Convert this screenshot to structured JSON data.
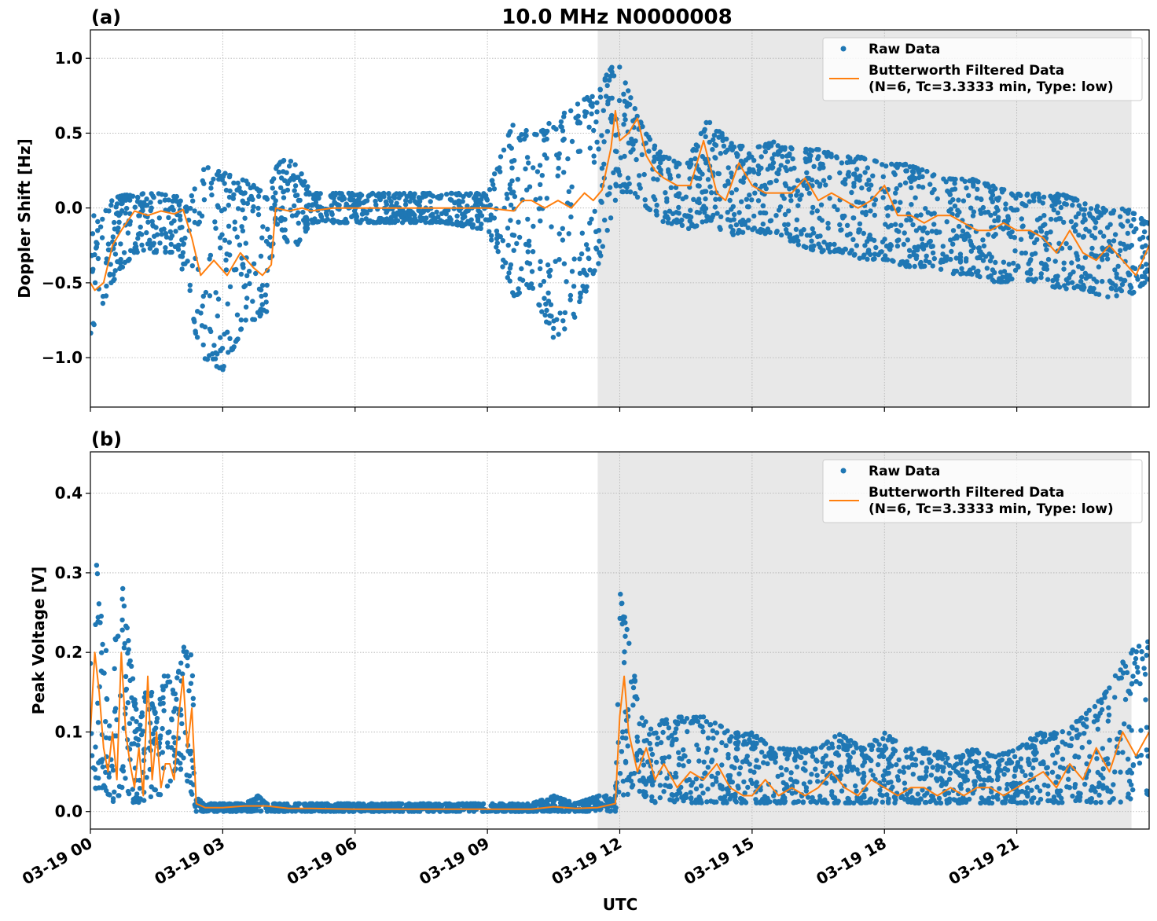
{
  "figure": {
    "title": "10.0 MHz N0000008",
    "xlabel": "UTC"
  },
  "colors": {
    "raw": "#1f77b4",
    "filtered": "#ff7f0e",
    "shade": "#e8e8e8",
    "grid": "#b0b0b0"
  },
  "chart_data": [
    {
      "type": "scatter",
      "panel_label": "(a)",
      "ylabel": "Doppler Shift [Hz]",
      "xlim": [
        0,
        24
      ],
      "ylim": [
        -1.33,
        1.19
      ],
      "yticks": [
        -1.0,
        -0.5,
        0.0,
        0.5,
        1.0
      ],
      "ytick_labels": [
        "−1.0",
        "−0.5",
        "0.0",
        "0.5",
        "1.0"
      ],
      "xticks": [
        0,
        3,
        6,
        9,
        12,
        15,
        18,
        21
      ],
      "xtick_labels": [
        "03-19 00",
        "03-19 03",
        "03-19 06",
        "03-19 09",
        "03-19 12",
        "03-19 15",
        "03-19 18",
        "03-19 21"
      ],
      "shaded_region": [
        11.5,
        23.6
      ],
      "grid": true,
      "legend": {
        "placement": "upper right",
        "entries": [
          "Raw Data",
          "Butterworth Filtered Data",
          "(N=6, Tc=3.3333 min, Type: low)"
        ]
      },
      "series": [
        {
          "name": "Raw Data",
          "style": "markers",
          "envelope": {
            "x": [
              0,
              0.2,
              0.5,
              1.0,
              1.5,
              2.0,
              2.2,
              2.5,
              3.0,
              3.5,
              4.0,
              4.2,
              4.6,
              5.0,
              6.0,
              7.0,
              8.0,
              9.0,
              9.6,
              10.0,
              10.5,
              11.0,
              11.5,
              11.8,
              12.0,
              12.3,
              12.6,
              13.0,
              13.5,
              14.0,
              14.5,
              15.0,
              15.5,
              16.0,
              16.5,
              17.0,
              17.5,
              18.0,
              18.5,
              19.0,
              19.5,
              20.0,
              20.5,
              21.0,
              21.5,
              22.0,
              22.5,
              23.0,
              23.5,
              24.0
            ],
            "upper": [
              0.0,
              -0.1,
              0.08,
              0.1,
              0.1,
              0.1,
              0.0,
              0.3,
              0.25,
              0.2,
              0.1,
              0.3,
              0.35,
              0.1,
              0.1,
              0.1,
              0.1,
              0.1,
              0.6,
              0.5,
              0.6,
              0.7,
              0.8,
              0.95,
              0.95,
              0.7,
              0.5,
              0.35,
              0.3,
              0.6,
              0.45,
              0.4,
              0.45,
              0.4,
              0.4,
              0.35,
              0.35,
              0.3,
              0.3,
              0.25,
              0.2,
              0.2,
              0.15,
              0.1,
              0.1,
              0.1,
              0.05,
              0.0,
              0.0,
              -0.1
            ],
            "lower": [
              -0.85,
              -0.7,
              -0.5,
              -0.3,
              -0.3,
              -0.3,
              -0.6,
              -1.0,
              -1.1,
              -0.8,
              -0.7,
              -0.1,
              -0.3,
              -0.1,
              -0.1,
              -0.1,
              -0.1,
              -0.15,
              -0.6,
              -0.55,
              -0.9,
              -0.75,
              -0.4,
              -0.1,
              0.1,
              0.1,
              0.0,
              -0.1,
              -0.15,
              -0.1,
              -0.2,
              -0.15,
              -0.2,
              -0.25,
              -0.3,
              -0.3,
              -0.35,
              -0.35,
              -0.4,
              -0.4,
              -0.45,
              -0.45,
              -0.5,
              -0.5,
              -0.5,
              -0.55,
              -0.55,
              -0.6,
              -0.6,
              -0.5
            ]
          }
        },
        {
          "name": "Butterworth Filtered Data",
          "style": "line",
          "x": [
            0,
            0.1,
            0.3,
            0.5,
            0.7,
            1.0,
            1.3,
            1.6,
            1.9,
            2.1,
            2.3,
            2.5,
            2.8,
            3.1,
            3.4,
            3.7,
            3.9,
            4.1,
            4.2,
            4.5,
            4.8,
            5.0,
            5.5,
            6.0,
            7.0,
            8.0,
            9.0,
            9.6,
            9.8,
            10.0,
            10.3,
            10.6,
            10.9,
            11.2,
            11.4,
            11.6,
            11.8,
            11.9,
            12.0,
            12.2,
            12.4,
            12.6,
            12.8,
            13.0,
            13.3,
            13.6,
            13.9,
            14.2,
            14.4,
            14.7,
            15.0,
            15.3,
            15.6,
            15.9,
            16.2,
            16.5,
            16.8,
            17.1,
            17.4,
            17.7,
            18.0,
            18.3,
            18.6,
            18.9,
            19.2,
            19.5,
            19.8,
            20.1,
            20.4,
            20.7,
            21.0,
            21.3,
            21.6,
            21.9,
            22.2,
            22.5,
            22.8,
            23.1,
            23.4,
            23.7,
            24.0
          ],
          "y": [
            -0.5,
            -0.55,
            -0.5,
            -0.25,
            -0.15,
            -0.02,
            -0.05,
            -0.02,
            -0.04,
            -0.01,
            -0.2,
            -0.45,
            -0.35,
            -0.45,
            -0.3,
            -0.4,
            -0.45,
            -0.38,
            0.0,
            -0.02,
            0.0,
            -0.02,
            0.0,
            0.0,
            0.0,
            0.0,
            0.0,
            -0.02,
            0.05,
            0.05,
            0.0,
            0.05,
            0.0,
            0.1,
            0.05,
            0.12,
            0.4,
            0.65,
            0.45,
            0.5,
            0.6,
            0.35,
            0.25,
            0.2,
            0.15,
            0.15,
            0.45,
            0.1,
            0.05,
            0.3,
            0.15,
            0.1,
            0.1,
            0.1,
            0.2,
            0.05,
            0.1,
            0.05,
            0.0,
            0.05,
            0.15,
            -0.05,
            -0.05,
            -0.1,
            -0.05,
            -0.05,
            -0.1,
            -0.15,
            -0.15,
            -0.1,
            -0.15,
            -0.15,
            -0.2,
            -0.3,
            -0.15,
            -0.3,
            -0.35,
            -0.25,
            -0.35,
            -0.45,
            -0.25
          ]
        }
      ]
    },
    {
      "type": "scatter",
      "panel_label": "(b)",
      "ylabel": "Peak Voltage [V]",
      "xlim": [
        0,
        24
      ],
      "ylim": [
        -0.022,
        0.452
      ],
      "yticks": [
        0.0,
        0.1,
        0.2,
        0.3,
        0.4
      ],
      "ytick_labels": [
        "0.0",
        "0.1",
        "0.2",
        "0.3",
        "0.4"
      ],
      "xticks": [
        0,
        3,
        6,
        9,
        12,
        15,
        18,
        21
      ],
      "xtick_labels": [
        "03-19 00",
        "03-19 03",
        "03-19 06",
        "03-19 09",
        "03-19 12",
        "03-19 15",
        "03-19 18",
        "03-19 21"
      ],
      "shaded_region": [
        11.5,
        23.6
      ],
      "grid": true,
      "legend": {
        "placement": "upper right",
        "entries": [
          "Raw Data",
          "Butterworth Filtered Data",
          "(N=6, Tc=3.3333 min, Type: low)"
        ]
      },
      "series": [
        {
          "name": "Raw Data",
          "style": "markers",
          "envelope": {
            "x": [
              0,
              0.15,
              0.3,
              0.5,
              0.7,
              0.9,
              1.1,
              1.3,
              1.5,
              1.7,
              1.9,
              2.1,
              2.3,
              2.4,
              2.6,
              3.0,
              3.5,
              3.8,
              4.0,
              4.5,
              5.0,
              6.0,
              7.0,
              8.0,
              9.0,
              10.0,
              10.5,
              11.0,
              11.5,
              11.9,
              12.0,
              12.2,
              12.5,
              12.8,
              13.0,
              13.5,
              14.0,
              14.5,
              15.0,
              15.5,
              16.0,
              16.5,
              17.0,
              17.5,
              18.0,
              18.5,
              19.0,
              19.5,
              20.0,
              20.5,
              21.0,
              21.5,
              22.0,
              22.5,
              23.0,
              23.5,
              24.0
            ],
            "upper": [
              0.2,
              0.32,
              0.22,
              0.18,
              0.3,
              0.2,
              0.1,
              0.18,
              0.12,
              0.18,
              0.15,
              0.21,
              0.2,
              0.02,
              0.01,
              0.01,
              0.01,
              0.02,
              0.01,
              0.01,
              0.01,
              0.01,
              0.01,
              0.01,
              0.01,
              0.01,
              0.02,
              0.01,
              0.02,
              0.02,
              0.28,
              0.22,
              0.12,
              0.1,
              0.12,
              0.12,
              0.12,
              0.1,
              0.1,
              0.08,
              0.08,
              0.08,
              0.1,
              0.08,
              0.1,
              0.08,
              0.08,
              0.07,
              0.08,
              0.07,
              0.08,
              0.1,
              0.1,
              0.12,
              0.15,
              0.2,
              0.22
            ],
            "lower": [
              0.05,
              0.02,
              0.03,
              0.01,
              0.02,
              0.01,
              0.01,
              0.01,
              0.02,
              0.02,
              0.05,
              0.05,
              0.02,
              0.0,
              0.0,
              0.0,
              0.0,
              0.0,
              0.0,
              0.0,
              0.0,
              0.0,
              0.0,
              0.0,
              0.0,
              0.0,
              0.0,
              0.0,
              0.0,
              0.0,
              0.01,
              0.02,
              0.02,
              0.01,
              0.01,
              0.01,
              0.01,
              0.01,
              0.01,
              0.01,
              0.01,
              0.01,
              0.01,
              0.01,
              0.01,
              0.01,
              0.01,
              0.01,
              0.01,
              0.01,
              0.01,
              0.01,
              0.01,
              0.01,
              0.01,
              0.01,
              0.02
            ]
          }
        },
        {
          "name": "Butterworth Filtered Data",
          "style": "line",
          "x": [
            0,
            0.1,
            0.2,
            0.3,
            0.4,
            0.5,
            0.6,
            0.7,
            0.8,
            0.9,
            1.0,
            1.1,
            1.2,
            1.3,
            1.4,
            1.5,
            1.6,
            1.7,
            1.8,
            1.9,
            2.0,
            2.1,
            2.2,
            2.3,
            2.4,
            2.6,
            3.0,
            3.5,
            4.0,
            4.5,
            5.0,
            6.0,
            7.0,
            8.0,
            9.0,
            10.0,
            10.5,
            11.0,
            11.5,
            11.9,
            12.0,
            12.1,
            12.2,
            12.4,
            12.6,
            12.8,
            13.0,
            13.3,
            13.6,
            13.9,
            14.2,
            14.5,
            14.8,
            15.0,
            15.3,
            15.6,
            15.9,
            16.2,
            16.5,
            16.8,
            17.1,
            17.4,
            17.7,
            18.0,
            18.3,
            18.6,
            18.9,
            19.2,
            19.5,
            19.8,
            20.1,
            20.4,
            20.7,
            21.0,
            21.3,
            21.6,
            21.9,
            22.2,
            22.5,
            22.8,
            23.1,
            23.4,
            23.7,
            24.0
          ],
          "y": [
            0.1,
            0.2,
            0.15,
            0.08,
            0.05,
            0.1,
            0.04,
            0.2,
            0.1,
            0.06,
            0.03,
            0.08,
            0.02,
            0.17,
            0.04,
            0.1,
            0.03,
            0.06,
            0.06,
            0.04,
            0.12,
            0.17,
            0.08,
            0.13,
            0.01,
            0.005,
            0.005,
            0.007,
            0.007,
            0.004,
            0.004,
            0.003,
            0.003,
            0.003,
            0.003,
            0.003,
            0.006,
            0.004,
            0.005,
            0.01,
            0.12,
            0.17,
            0.1,
            0.05,
            0.08,
            0.04,
            0.06,
            0.03,
            0.05,
            0.04,
            0.06,
            0.03,
            0.02,
            0.02,
            0.04,
            0.02,
            0.03,
            0.02,
            0.03,
            0.05,
            0.03,
            0.02,
            0.04,
            0.03,
            0.02,
            0.03,
            0.03,
            0.02,
            0.03,
            0.02,
            0.03,
            0.03,
            0.02,
            0.03,
            0.04,
            0.05,
            0.03,
            0.06,
            0.04,
            0.08,
            0.05,
            0.1,
            0.07,
            0.1
          ]
        }
      ]
    }
  ]
}
